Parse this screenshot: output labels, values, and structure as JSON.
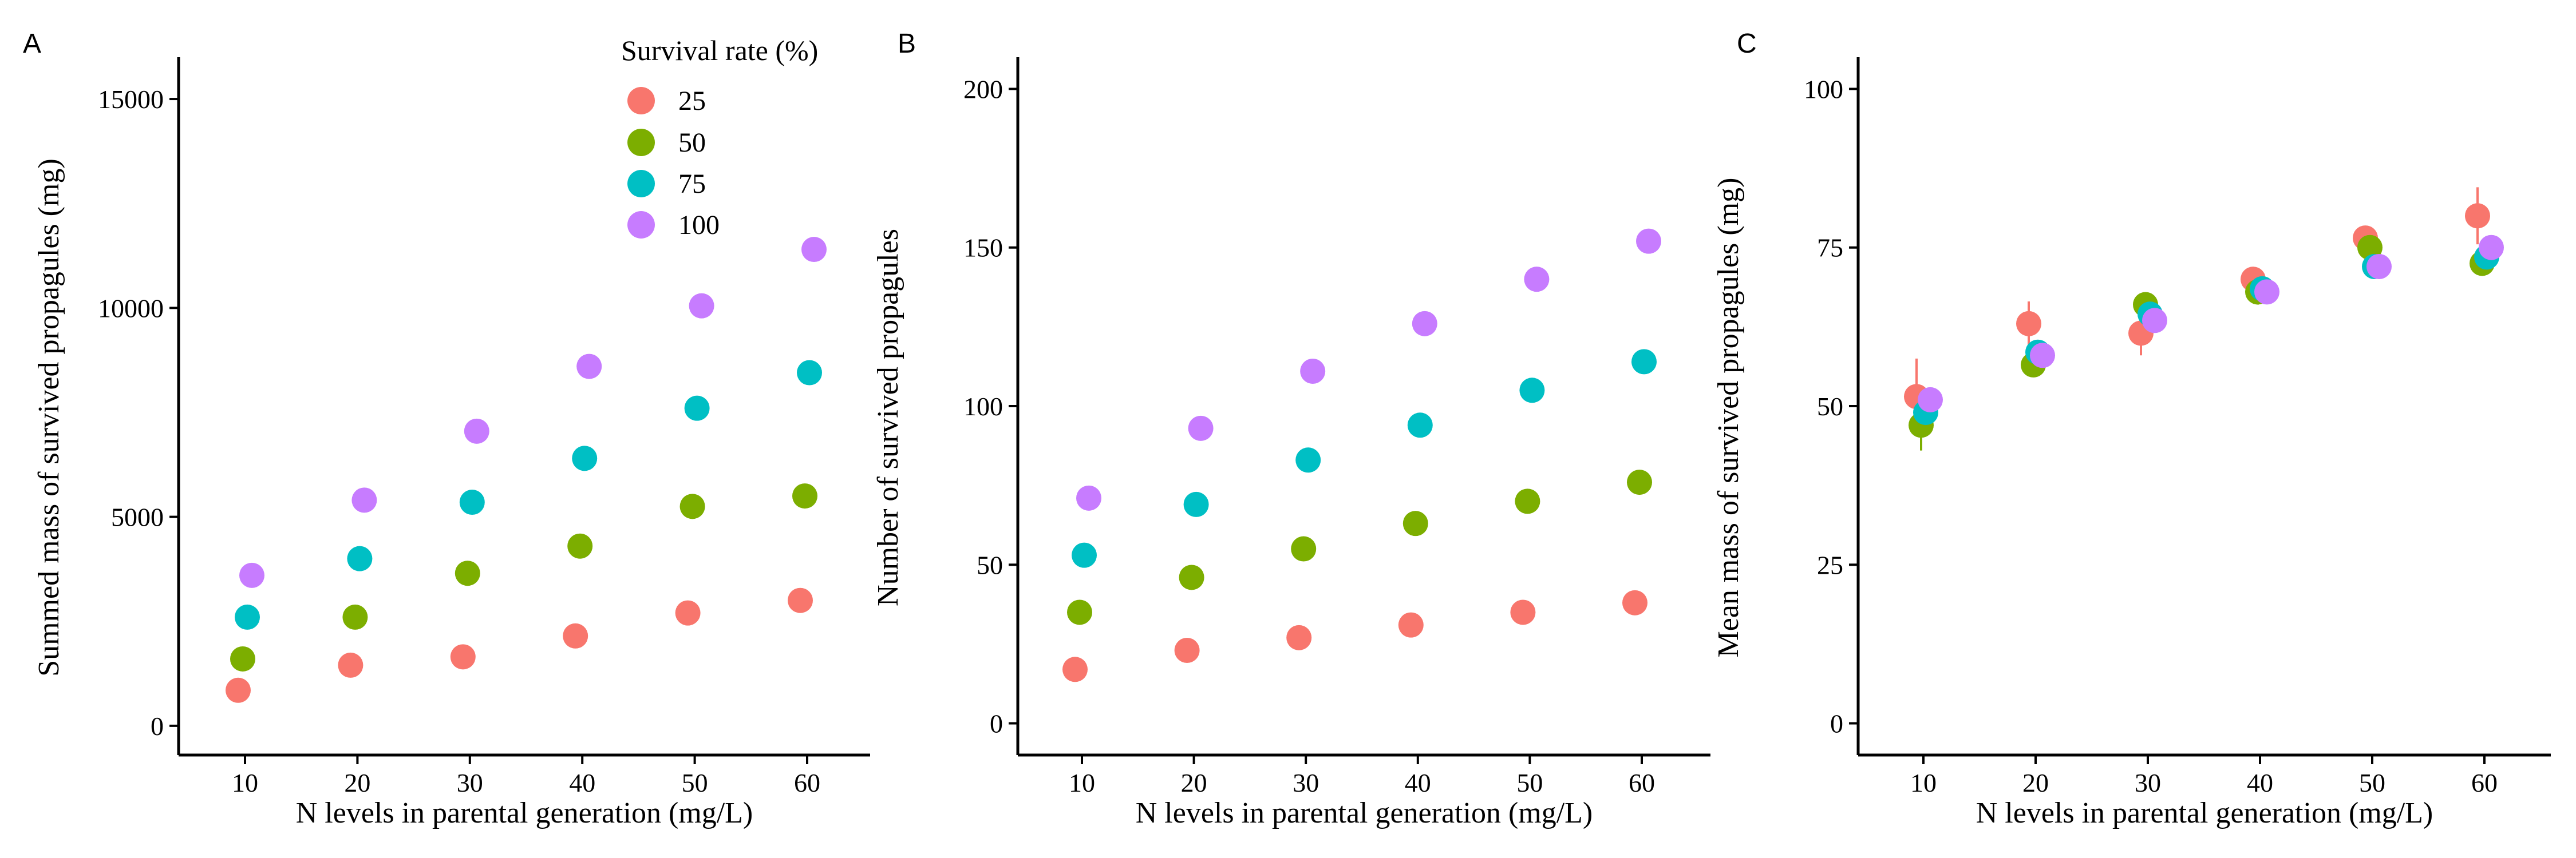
{
  "legend": {
    "title": "Survival rate (%)",
    "entries": [
      {
        "label": "25",
        "color": "#F8766D"
      },
      {
        "label": "50",
        "color": "#7CAE00"
      },
      {
        "label": "75",
        "color": "#00BFC4"
      },
      {
        "label": "100",
        "color": "#C77CFF"
      }
    ]
  },
  "chart_data": [
    {
      "panel": "A",
      "type": "scatter",
      "xlabel": "N levels in parental generation (mg/L)",
      "ylabel": "Summed mass of survived propagules (mg)",
      "x": [
        10,
        20,
        30,
        40,
        50,
        60
      ],
      "xticks": [
        "10",
        "20",
        "30",
        "40",
        "50",
        "60"
      ],
      "yticks": [
        0,
        5000,
        10000,
        15000
      ],
      "ylim": [
        -700,
        16000
      ],
      "series": [
        {
          "name": "25",
          "color": "#F8766D",
          "values": [
            850,
            1450,
            1650,
            2150,
            2700,
            3000
          ]
        },
        {
          "name": "50",
          "color": "#7CAE00",
          "values": [
            1600,
            2600,
            3650,
            4300,
            5250,
            5500
          ]
        },
        {
          "name": "75",
          "color": "#00BFC4",
          "values": [
            2600,
            4000,
            5350,
            6400,
            7600,
            8450
          ]
        },
        {
          "name": "100",
          "color": "#C77CFF",
          "values": [
            3600,
            5400,
            7050,
            8600,
            10050,
            11400
          ]
        }
      ]
    },
    {
      "panel": "B",
      "type": "scatter",
      "xlabel": "N levels in parental generation (mg/L)",
      "ylabel": "Number of survived propagules",
      "x": [
        10,
        20,
        30,
        40,
        50,
        60
      ],
      "xticks": [
        "10",
        "20",
        "30",
        "40",
        "50",
        "60"
      ],
      "yticks": [
        0,
        50,
        100,
        150,
        200
      ],
      "ylim": [
        -10,
        210
      ],
      "series": [
        {
          "name": "25",
          "color": "#F8766D",
          "values": [
            17,
            23,
            27,
            31,
            35,
            38
          ]
        },
        {
          "name": "50",
          "color": "#7CAE00",
          "values": [
            35,
            46,
            55,
            63,
            70,
            76
          ]
        },
        {
          "name": "75",
          "color": "#00BFC4",
          "values": [
            53,
            69,
            83,
            94,
            105,
            114
          ]
        },
        {
          "name": "100",
          "color": "#C77CFF",
          "values": [
            71,
            93,
            111,
            126,
            140,
            152
          ]
        }
      ]
    },
    {
      "panel": "C",
      "type": "scatter",
      "xlabel": "N levels in parental generation (mg/L)",
      "ylabel": "Mean mass of survived propagules (mg)",
      "x": [
        10,
        20,
        30,
        40,
        50,
        60
      ],
      "xticks": [
        "10",
        "20",
        "30",
        "40",
        "50",
        "60"
      ],
      "yticks": [
        0,
        25,
        50,
        75,
        100
      ],
      "ylim": [
        -5,
        105
      ],
      "series": [
        {
          "name": "25",
          "color": "#F8766D",
          "values": [
            51.5,
            63,
            61.5,
            70,
            76.5,
            80
          ],
          "err": [
            6,
            3.5,
            3.5,
            0.8,
            1,
            4.5
          ]
        },
        {
          "name": "50",
          "color": "#7CAE00",
          "values": [
            47,
            56.5,
            66,
            68,
            75,
            72.5
          ],
          "err": [
            4,
            1.2,
            1.2,
            2,
            0.8,
            1
          ]
        },
        {
          "name": "75",
          "color": "#00BFC4",
          "values": [
            49,
            58.5,
            64.5,
            68.5,
            72,
            73.5
          ],
          "err": [
            1,
            0.8,
            0.8,
            0.8,
            0.8,
            0.8
          ]
        },
        {
          "name": "100",
          "color": "#C77CFF",
          "values": [
            51,
            58,
            63.5,
            68,
            72,
            75
          ],
          "err": [
            0.8,
            0.8,
            0.8,
            0.8,
            0.8,
            0.8
          ]
        }
      ]
    }
  ]
}
